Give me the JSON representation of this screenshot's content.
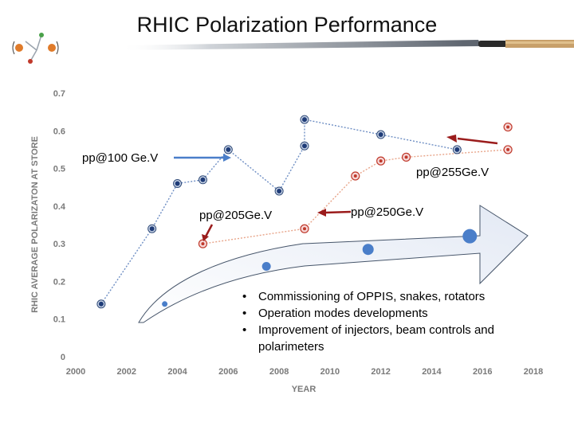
{
  "slide": {
    "title": "RHIC Polarization Performance"
  },
  "chart_data": {
    "type": "scatter",
    "title": "",
    "xlabel": "YEAR",
    "ylabel": "RHIC AVERAGE POLARIZATON AT STORE",
    "xlim": [
      2000,
      2018
    ],
    "ylim": [
      0,
      0.7
    ],
    "xticks": [
      "2000",
      "2002",
      "2004",
      "2006",
      "2008",
      "2010",
      "2012",
      "2014",
      "2016",
      "2018"
    ],
    "yticks": [
      "0",
      "0.1",
      "0.2",
      "0.3",
      "0.4",
      "0.5",
      "0.6",
      "0.7"
    ],
    "series": [
      {
        "name": "pp@100 GeV",
        "color": "#3b62a8",
        "x": [
          2001,
          2003,
          2004,
          2005,
          2006,
          2008,
          2009,
          2009,
          2012,
          2015
        ],
        "y": [
          0.14,
          0.34,
          0.46,
          0.47,
          0.55,
          0.44,
          0.56,
          0.63,
          0.59,
          0.55
        ]
      },
      {
        "name": "pp@205/250/255 GeV",
        "color": "#c0392b",
        "x": [
          2005,
          2009,
          2011,
          2012,
          2013,
          2017,
          2017
        ],
        "y": [
          0.3,
          0.34,
          0.48,
          0.52,
          0.53,
          0.55,
          0.61
        ]
      }
    ],
    "projections": {
      "color": "#4a7ec9",
      "x": [
        2003.5,
        2007.5,
        2011.5,
        2015.5
      ],
      "y": [
        0.14,
        0.24,
        0.285,
        0.32
      ]
    },
    "annotations": {
      "pp100": "pp@100 Ge.V",
      "pp255": "pp@255Ge.V",
      "pp205": "pp@205Ge.V",
      "pp250": "pp@250Ge.V"
    },
    "bullets": [
      "Commissioning of OPPIS, snakes, rotators",
      "Operation modes developments",
      "Improvement of injectors, beam controls and polarimeters"
    ]
  }
}
